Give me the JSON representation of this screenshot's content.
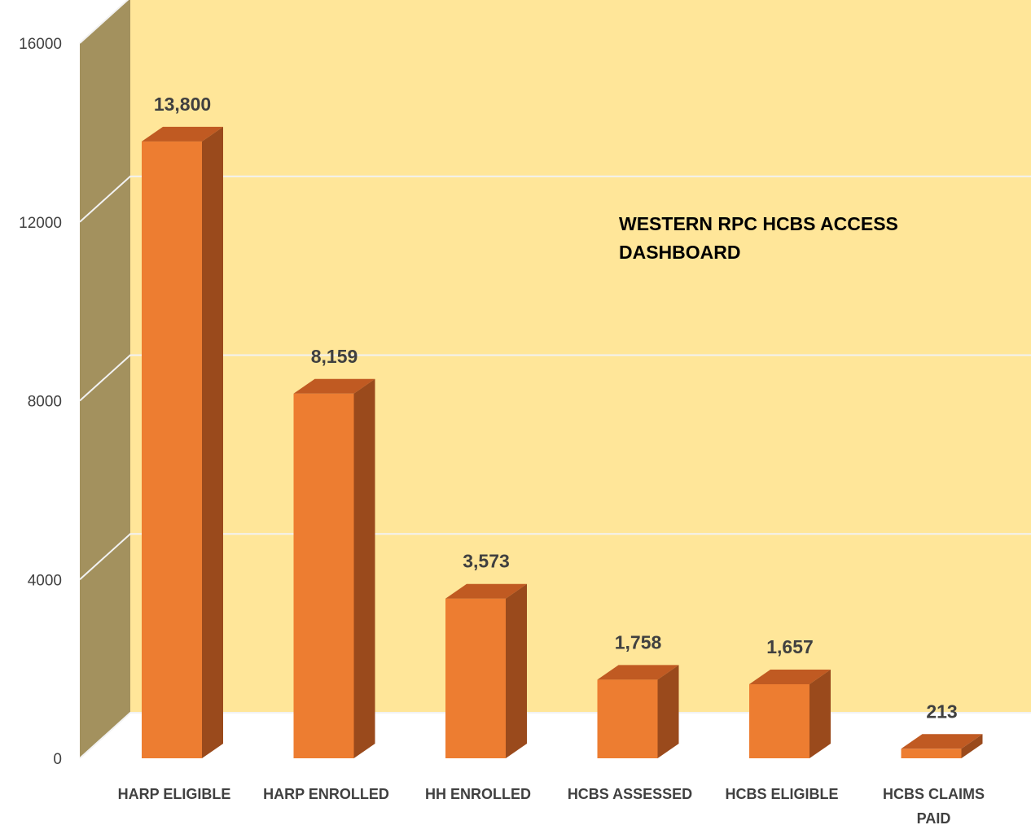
{
  "chart_data": {
    "type": "bar",
    "title_lines": [
      "WESTERN RPC HCBS ACCESS",
      "DASHBOARD"
    ],
    "categories": [
      "HARP ELIGIBLE",
      "HARP ENROLLED",
      "HH ENROLLED",
      "HCBS ASSESSED",
      "HCBS ELIGIBLE",
      "HCBS CLAIMS PAID"
    ],
    "category_lines": [
      [
        "HARP ELIGIBLE"
      ],
      [
        "HARP ENROLLED"
      ],
      [
        "HH ENROLLED"
      ],
      [
        "HCBS ASSESSED"
      ],
      [
        "HCBS ELIGIBLE"
      ],
      [
        "HCBS CLAIMS",
        "PAID"
      ]
    ],
    "values": [
      13800,
      8159,
      3573,
      1758,
      1657,
      213
    ],
    "data_labels": [
      "13,800",
      "8,159",
      "3,573",
      "1,758",
      "1,657",
      "213"
    ],
    "y_ticks": [
      "0",
      "4000",
      "8000",
      "12000",
      "16000"
    ],
    "ylim": [
      0,
      16000
    ],
    "grid": true,
    "style": "3d-column",
    "colors": {
      "bar_front": "#ED7D31",
      "bar_top": "#C05A22",
      "bar_side": "#9A4A1C",
      "back_wall": "#FFE699",
      "side_wall": "#A3915E",
      "gridline": "#F2F2F2"
    }
  }
}
